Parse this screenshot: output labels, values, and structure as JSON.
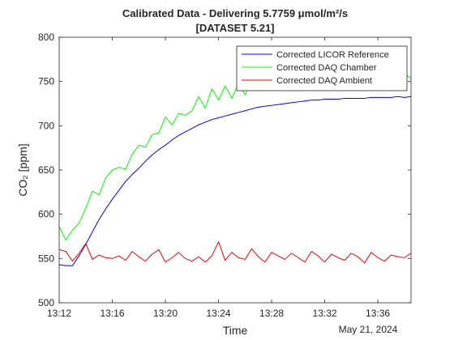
{
  "chart_data": {
    "type": "line",
    "title_line1": "Calibrated Data - Delivering 5.7759 μmol/m²/s",
    "title_line2": "[DATASET 5.21]",
    "xlabel": "Time",
    "ylabel": "CO₂ [ppm]",
    "date_label": "May 21, 2024",
    "x_range_minutes": [
      0,
      26.5
    ],
    "x_range_times": [
      "13:12",
      "13:38:30"
    ],
    "ylim": [
      500,
      800
    ],
    "x_ticks": [
      {
        "t": 0,
        "label": "13:12"
      },
      {
        "t": 4,
        "label": "13:16"
      },
      {
        "t": 8,
        "label": "13:20"
      },
      {
        "t": 12,
        "label": "13:24"
      },
      {
        "t": 16,
        "label": "13:28"
      },
      {
        "t": 20,
        "label": "13:32"
      },
      {
        "t": 24,
        "label": "13:36"
      }
    ],
    "y_ticks": [
      500,
      550,
      600,
      650,
      700,
      750,
      800
    ],
    "legend_position": "top-right",
    "grid": false,
    "series": [
      {
        "name": "Corrected LICOR Reference",
        "color": "#0000ff",
        "t": [
          0,
          0.5,
          1,
          1.5,
          2,
          2.5,
          3,
          3.5,
          4,
          4.5,
          5,
          5.5,
          6,
          6.5,
          7,
          7.5,
          8,
          8.5,
          9,
          9.5,
          10,
          10.5,
          11,
          11.5,
          12,
          12.5,
          13,
          13.5,
          14,
          14.5,
          15,
          15.5,
          16,
          16.5,
          17,
          17.5,
          18,
          18.5,
          19,
          19.5,
          20,
          20.5,
          21,
          21.5,
          22,
          22.5,
          23,
          23.5,
          24,
          24.5,
          25,
          25.5,
          26,
          26.5
        ],
        "values": [
          543,
          542,
          542,
          553,
          566,
          580,
          594,
          606,
          617,
          627,
          637,
          645,
          652,
          660,
          667,
          673,
          678,
          684,
          689,
          693,
          697,
          701,
          704,
          707,
          709,
          711,
          713,
          715,
          717,
          719,
          721,
          722,
          723,
          724,
          725,
          726,
          727,
          728,
          729,
          729,
          730,
          730,
          730,
          731,
          731,
          731,
          731,
          732,
          732,
          732,
          732,
          733,
          732,
          733
        ]
      },
      {
        "name": "Corrected DAQ Chamber",
        "color": "#00ff00",
        "t": [
          0,
          0.5,
          1,
          1.5,
          2,
          2.5,
          3,
          3.5,
          4,
          4.5,
          5,
          5.5,
          6,
          6.5,
          7,
          7.5,
          8,
          8.5,
          9,
          9.5,
          10,
          10.5,
          11,
          11.5,
          12,
          12.5,
          13,
          13.5,
          14,
          14.5,
          15,
          15.5,
          16,
          16.5,
          17,
          17.5,
          18,
          18.5,
          19,
          19.5,
          20,
          20.5,
          21,
          21.5,
          22,
          22.5,
          23,
          23.5,
          24,
          24.5,
          25,
          25.5,
          26,
          26.5
        ],
        "values": [
          586,
          571,
          582,
          590,
          607,
          626,
          622,
          641,
          650,
          653,
          651,
          668,
          678,
          676,
          690,
          692,
          710,
          701,
          714,
          712,
          717,
          733,
          720,
          742,
          729,
          745,
          731,
          748,
          735,
          752,
          741,
          760,
          745,
          766,
          750,
          769,
          753,
          778,
          770,
          756,
          762,
          750,
          760,
          748,
          763,
          751,
          758,
          755,
          762,
          748,
          765,
          755,
          760,
          753
        ]
      },
      {
        "name": "Corrected DAQ Ambient",
        "color": "#ff0000",
        "t": [
          0,
          0.5,
          1,
          1.5,
          2,
          2.5,
          3,
          3.5,
          4,
          4.5,
          5,
          5.5,
          6,
          6.5,
          7,
          7.5,
          8,
          8.5,
          9,
          9.5,
          10,
          10.5,
          11,
          11.5,
          12,
          12.5,
          13,
          13.5,
          14,
          14.5,
          15,
          15.5,
          16,
          16.5,
          17,
          17.5,
          18,
          18.5,
          19,
          19.5,
          20,
          20.5,
          21,
          21.5,
          22,
          22.5,
          23,
          23.5,
          24,
          24.5,
          25,
          25.5,
          26,
          26.5
        ],
        "values": [
          560,
          558,
          547,
          556,
          567,
          549,
          554,
          551,
          550,
          553,
          548,
          558,
          552,
          547,
          555,
          560,
          546,
          551,
          557,
          550,
          547,
          552,
          546,
          553,
          569,
          548,
          557,
          551,
          549,
          561,
          552,
          546,
          557,
          553,
          549,
          556,
          551,
          546,
          558,
          553,
          546,
          555,
          551,
          548,
          556,
          552,
          545,
          557,
          551,
          547,
          554,
          552,
          551,
          556
        ]
      }
    ]
  }
}
